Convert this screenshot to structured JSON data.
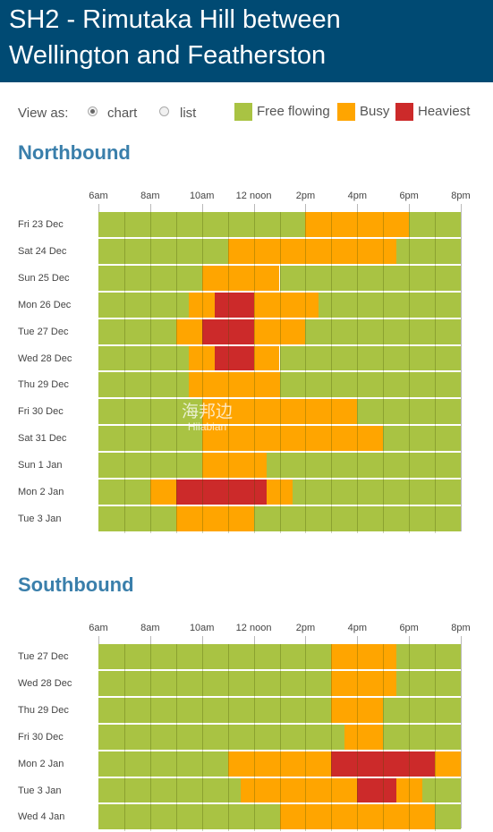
{
  "title_line1": "SH2 - Rimutaka Hill between",
  "title_line2": "Wellington and Featherston",
  "view_as_label": "View as:",
  "view_options": [
    {
      "label": "chart",
      "selected": true
    },
    {
      "label": "list",
      "selected": false
    }
  ],
  "legend": [
    {
      "label": "Free flowing",
      "color": "#a9c343"
    },
    {
      "label": "Busy",
      "color": "#ffa500"
    },
    {
      "label": "Heaviest",
      "color": "#cc2a2a"
    }
  ],
  "watermark": {
    "text": "海邦边",
    "sub": "Hiiabian"
  },
  "chart_data": [
    {
      "type": "heatmap",
      "title": "Northbound",
      "x_ticks": [
        "6am",
        "8am",
        "10am",
        "12 noon",
        "2pm",
        "4pm",
        "6pm",
        "8pm"
      ],
      "x_range_hours": [
        6,
        20
      ],
      "rows": [
        {
          "day": "Fri 23 Dec",
          "segments": [
            [
              6,
              14,
              "free"
            ],
            [
              14,
              18,
              "busy"
            ],
            [
              18,
              20,
              "free"
            ]
          ]
        },
        {
          "day": "Sat 24 Dec",
          "segments": [
            [
              6,
              11,
              "free"
            ],
            [
              11,
              17.5,
              "busy"
            ],
            [
              17.5,
              20,
              "free"
            ]
          ]
        },
        {
          "day": "Sun 25 Dec",
          "segments": [
            [
              6,
              10,
              "free"
            ],
            [
              10,
              13,
              "busy"
            ],
            [
              13,
              20,
              "free"
            ]
          ]
        },
        {
          "day": "Mon 26 Dec",
          "segments": [
            [
              6,
              9.5,
              "free"
            ],
            [
              9.5,
              10.5,
              "busy"
            ],
            [
              10.5,
              12,
              "heavy"
            ],
            [
              12,
              14.5,
              "busy"
            ],
            [
              14.5,
              20,
              "free"
            ]
          ]
        },
        {
          "day": "Tue 27 Dec",
          "segments": [
            [
              6,
              9,
              "free"
            ],
            [
              9,
              10,
              "busy"
            ],
            [
              10,
              12,
              "heavy"
            ],
            [
              12,
              14,
              "busy"
            ],
            [
              14,
              20,
              "free"
            ]
          ]
        },
        {
          "day": "Wed 28 Dec",
          "segments": [
            [
              6,
              9.5,
              "free"
            ],
            [
              9.5,
              10.5,
              "busy"
            ],
            [
              10.5,
              12,
              "heavy"
            ],
            [
              12,
              13,
              "busy"
            ],
            [
              13,
              20,
              "free"
            ]
          ]
        },
        {
          "day": "Thu 29 Dec",
          "segments": [
            [
              6,
              9.5,
              "free"
            ],
            [
              9.5,
              13,
              "busy"
            ],
            [
              13,
              20,
              "free"
            ]
          ]
        },
        {
          "day": "Fri 30 Dec",
          "segments": [
            [
              6,
              10,
              "free"
            ],
            [
              10,
              16,
              "busy"
            ],
            [
              16,
              20,
              "free"
            ]
          ]
        },
        {
          "day": "Sat 31 Dec",
          "segments": [
            [
              6,
              10,
              "free"
            ],
            [
              10,
              17,
              "busy"
            ],
            [
              17,
              20,
              "free"
            ]
          ]
        },
        {
          "day": "Sun 1 Jan",
          "segments": [
            [
              6,
              10,
              "free"
            ],
            [
              10,
              12.5,
              "busy"
            ],
            [
              12.5,
              20,
              "free"
            ]
          ]
        },
        {
          "day": "Mon 2 Jan",
          "segments": [
            [
              6,
              8,
              "free"
            ],
            [
              8,
              9,
              "busy"
            ],
            [
              9,
              12.5,
              "heavy"
            ],
            [
              12.5,
              13.5,
              "busy"
            ],
            [
              13.5,
              20,
              "free"
            ]
          ]
        },
        {
          "day": "Tue 3 Jan",
          "segments": [
            [
              6,
              9,
              "free"
            ],
            [
              9,
              12,
              "busy"
            ],
            [
              12,
              20,
              "free"
            ]
          ]
        }
      ]
    },
    {
      "type": "heatmap",
      "title": "Southbound",
      "x_ticks": [
        "6am",
        "8am",
        "10am",
        "12 noon",
        "2pm",
        "4pm",
        "6pm",
        "8pm"
      ],
      "x_range_hours": [
        6,
        20
      ],
      "rows": [
        {
          "day": "Tue 27 Dec",
          "segments": [
            [
              6,
              15,
              "free"
            ],
            [
              15,
              17.5,
              "busy"
            ],
            [
              17.5,
              20,
              "free"
            ]
          ]
        },
        {
          "day": "Wed 28 Dec",
          "segments": [
            [
              6,
              15,
              "free"
            ],
            [
              15,
              17.5,
              "busy"
            ],
            [
              17.5,
              20,
              "free"
            ]
          ]
        },
        {
          "day": "Thu 29 Dec",
          "segments": [
            [
              6,
              15,
              "free"
            ],
            [
              15,
              17,
              "busy"
            ],
            [
              17,
              20,
              "free"
            ]
          ]
        },
        {
          "day": "Fri 30 Dec",
          "segments": [
            [
              6,
              15.5,
              "free"
            ],
            [
              15.5,
              17,
              "busy"
            ],
            [
              17,
              20,
              "free"
            ]
          ]
        },
        {
          "day": "Mon 2 Jan",
          "segments": [
            [
              6,
              11,
              "free"
            ],
            [
              11,
              15,
              "busy"
            ],
            [
              15,
              19,
              "heavy"
            ],
            [
              19,
              20,
              "busy"
            ]
          ]
        },
        {
          "day": "Tue 3 Jan",
          "segments": [
            [
              6,
              11.5,
              "free"
            ],
            [
              11.5,
              16,
              "busy"
            ],
            [
              16,
              17.5,
              "heavy"
            ],
            [
              17.5,
              18.5,
              "busy"
            ],
            [
              18.5,
              20,
              "free"
            ]
          ]
        },
        {
          "day": "Wed 4 Jan",
          "segments": [
            [
              6,
              13,
              "free"
            ],
            [
              13,
              19,
              "busy"
            ],
            [
              19,
              20,
              "free"
            ]
          ]
        }
      ]
    }
  ]
}
